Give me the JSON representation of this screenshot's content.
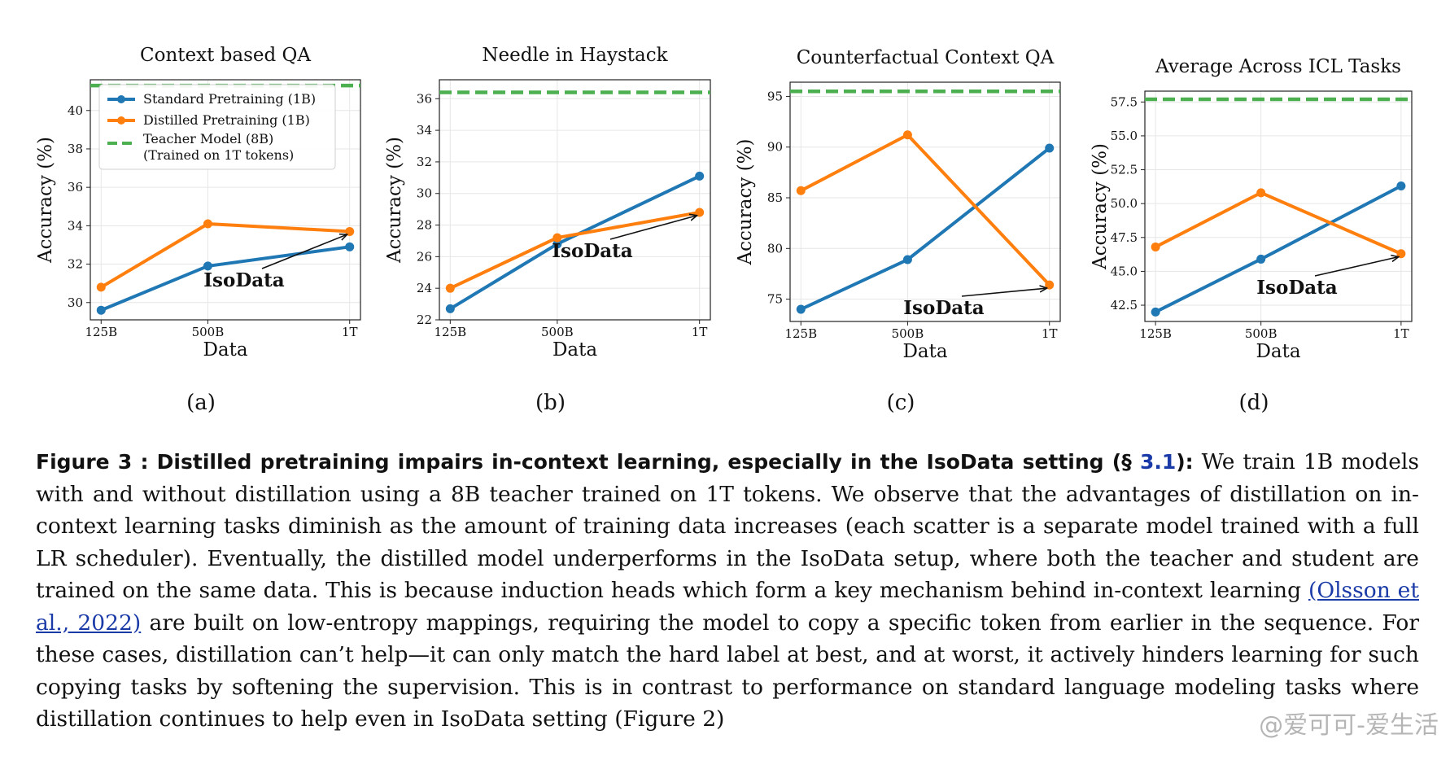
{
  "chart_data": [
    {
      "type": "line",
      "title": "Context based QA",
      "xlabel": "Data",
      "ylabel": "Accuracy (%)",
      "categories": [
        "125B",
        "500B",
        "1T"
      ],
      "ylim": [
        29.1,
        41.6
      ],
      "yticks": [
        "30",
        "32",
        "34",
        "36",
        "38",
        "40"
      ],
      "series": [
        {
          "name": "Standard Pretraining (1B)",
          "color": "#1f77b4",
          "values": [
            29.6,
            31.9,
            32.9
          ]
        },
        {
          "name": "Distilled Pretraining (1B)",
          "color": "#ff7f0e",
          "values": [
            30.8,
            34.1,
            33.7
          ]
        }
      ],
      "reference": {
        "name": "Teacher Model (8B)",
        "name2": "(Trained on 1T tokens)",
        "color": "#4caf50",
        "value": 41.3
      },
      "annotation": {
        "text": "IsoData",
        "target_x": "1T",
        "target_y": 33.7
      },
      "legend": "upper-left",
      "grid": true,
      "sublabel": "(a)"
    },
    {
      "type": "line",
      "title": "Needle in Haystack",
      "xlabel": "Data",
      "ylabel": "Accuracy (%)",
      "categories": [
        "125B",
        "500B",
        "1T"
      ],
      "ylim": [
        22,
        37.2
      ],
      "yticks": [
        "22",
        "24",
        "26",
        "28",
        "30",
        "32",
        "34",
        "36"
      ],
      "series": [
        {
          "name": "Standard Pretraining (1B)",
          "color": "#1f77b4",
          "values": [
            22.7,
            26.8,
            31.1
          ]
        },
        {
          "name": "Distilled Pretraining (1B)",
          "color": "#ff7f0e",
          "values": [
            24.0,
            27.2,
            28.8
          ]
        }
      ],
      "reference": {
        "name": "Teacher Model (8B)",
        "color": "#4caf50",
        "value": 36.4
      },
      "annotation": {
        "text": "IsoData",
        "target_x": "1T",
        "target_y": 28.8
      },
      "grid": true,
      "sublabel": "(b)"
    },
    {
      "type": "line",
      "title": "Counterfactual Context QA",
      "xlabel": "Data",
      "ylabel": "Accuracy (%)",
      "categories": [
        "125B",
        "500B",
        "1T"
      ],
      "ylim": [
        72.8,
        96.4
      ],
      "yticks": [
        "75",
        "80",
        "85",
        "90",
        "95"
      ],
      "series": [
        {
          "name": "Standard Pretraining (1B)",
          "color": "#1f77b4",
          "values": [
            74.0,
            78.9,
            89.9
          ]
        },
        {
          "name": "Distilled Pretraining (1B)",
          "color": "#ff7f0e",
          "values": [
            85.7,
            91.2,
            76.4
          ]
        }
      ],
      "reference": {
        "name": "Teacher Model (8B)",
        "color": "#4caf50",
        "value": 95.5
      },
      "annotation": {
        "text": "IsoData",
        "target_x": "1T",
        "target_y": 76.4
      },
      "grid": true,
      "sublabel": "(c)"
    },
    {
      "type": "line",
      "title": "Average Across ICL Tasks",
      "xlabel": "Data",
      "ylabel": "Accuracy (%)",
      "categories": [
        "125B",
        "500B",
        "1T"
      ],
      "ylim": [
        41.3,
        58.3
      ],
      "yticks": [
        "42.5",
        "45.0",
        "47.5",
        "50.0",
        "52.5",
        "55.0",
        "57.5"
      ],
      "series": [
        {
          "name": "Standard Pretraining (1B)",
          "color": "#1f77b4",
          "values": [
            42.0,
            45.9,
            51.3
          ]
        },
        {
          "name": "Distilled Pretraining (1B)",
          "color": "#ff7f0e",
          "values": [
            46.8,
            50.8,
            46.3
          ]
        }
      ],
      "reference": {
        "name": "Teacher Model (8B)",
        "color": "#4caf50",
        "value": 57.7
      },
      "annotation": {
        "text": "IsoData",
        "target_x": "1T",
        "target_y": 46.3
      },
      "grid": true,
      "sublabel": "(d)"
    }
  ],
  "caption": {
    "lead": "Figure 3 :    Distilled pretraining impairs in-context learning, especially in the IsoData setting (§ ",
    "secref": "3.1",
    "lead_end": "):",
    "body1": " We train 1B models with and without distillation using a 8B teacher trained on 1T tokens. We observe that the advantages of distillation on in-context learning tasks diminish as the amount of training data increases (each scatter is a separate model trained with a full LR scheduler). Eventually, the distilled model underperforms in the IsoData setup, where both the teacher and student are trained on the same data. This is because induction heads which form a key mechanism behind in-context learning ",
    "cite": "(Olsson et al., 2022)",
    "body2": " are built on low-entropy mappings, requiring the model to copy a specific token from earlier in the sequence. For these cases, distillation can’t help—it can only match the hard label at best, and at worst, it actively hinders learning for such copying tasks by softening the supervision. This is in contrast to performance on standard language modeling tasks where distillation continues to help even in IsoData setting (Figure 2)"
  },
  "watermark": "@爱可可-爱生活"
}
